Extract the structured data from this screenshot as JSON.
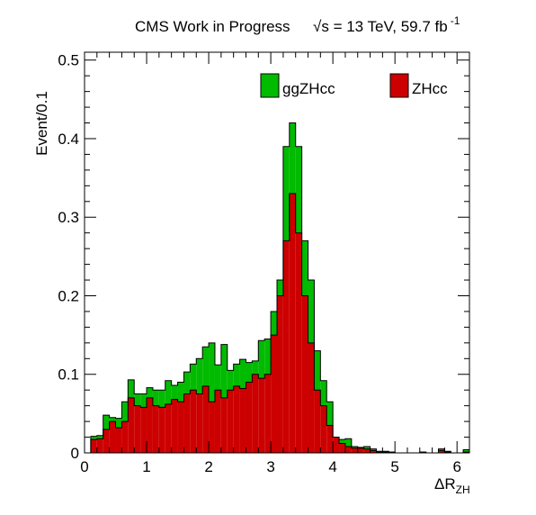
{
  "chart_data": {
    "type": "bar",
    "title": {
      "left": "CMS Work in Progress",
      "right_sqrt": "√s",
      "right_rest": " = 13 TeV, 59.7 fb",
      "right_sup": "-1"
    },
    "ylabel": "Event/0.1",
    "xlabel_main": "ΔR",
    "xlabel_sub": "ZH",
    "xlim": [
      0,
      6.2
    ],
    "ylim": [
      0,
      0.51
    ],
    "xticks": [
      0,
      1,
      2,
      3,
      4,
      5,
      6
    ],
    "xtick_labels": [
      "0",
      "1",
      "2",
      "3",
      "4",
      "5",
      "6"
    ],
    "yticks": [
      0,
      0.1,
      0.2,
      0.3,
      0.4,
      0.5
    ],
    "ytick_labels": [
      "0",
      "0.1",
      "0.2",
      "0.3",
      "0.4",
      "0.5"
    ],
    "bin_width": 0.1,
    "stacked": true,
    "legend_position": "top-right",
    "series": [
      {
        "name": "ZHcc",
        "color": "#cc0000",
        "values": [
          0.0,
          0.017,
          0.018,
          0.03,
          0.04,
          0.032,
          0.04,
          0.07,
          0.06,
          0.058,
          0.07,
          0.06,
          0.058,
          0.062,
          0.068,
          0.065,
          0.075,
          0.08,
          0.075,
          0.085,
          0.065,
          0.08,
          0.07,
          0.08,
          0.085,
          0.082,
          0.09,
          0.1,
          0.095,
          0.1,
          0.15,
          0.2,
          0.27,
          0.33,
          0.28,
          0.2,
          0.14,
          0.08,
          0.06,
          0.035,
          0.02,
          0.012,
          0.008,
          0.006,
          0.006,
          0.005,
          0.003,
          0.001,
          0.001,
          0.001,
          0.0,
          0.0,
          0.0,
          0.0,
          0.001,
          0.0,
          0.0,
          0.003,
          0.001,
          0.0,
          0.0,
          0.001
        ]
      },
      {
        "name": "ggZHcc",
        "color": "#00bb00",
        "values": [
          0.0,
          0.004,
          0.004,
          0.018,
          0.005,
          0.012,
          0.025,
          0.023,
          0.015,
          0.017,
          0.013,
          0.02,
          0.022,
          0.03,
          0.018,
          0.025,
          0.028,
          0.033,
          0.045,
          0.05,
          0.075,
          0.032,
          0.068,
          0.025,
          0.028,
          0.037,
          0.025,
          0.017,
          0.048,
          0.045,
          0.03,
          0.02,
          0.12,
          0.09,
          0.11,
          0.07,
          0.08,
          0.05,
          0.032,
          0.03,
          0.0,
          0.005,
          0.01,
          0.002,
          0.001,
          0.003,
          0.002,
          0.001,
          0.001,
          0.0,
          0.0,
          0.0,
          0.0,
          0.0,
          0.0,
          0.0,
          0.0,
          0.002,
          0.001,
          0.0,
          0.0,
          0.003
        ]
      }
    ],
    "legend": [
      {
        "label": "ggZHcc",
        "color": "#00bb00"
      },
      {
        "label": "ZHcc",
        "color": "#cc0000"
      }
    ]
  }
}
